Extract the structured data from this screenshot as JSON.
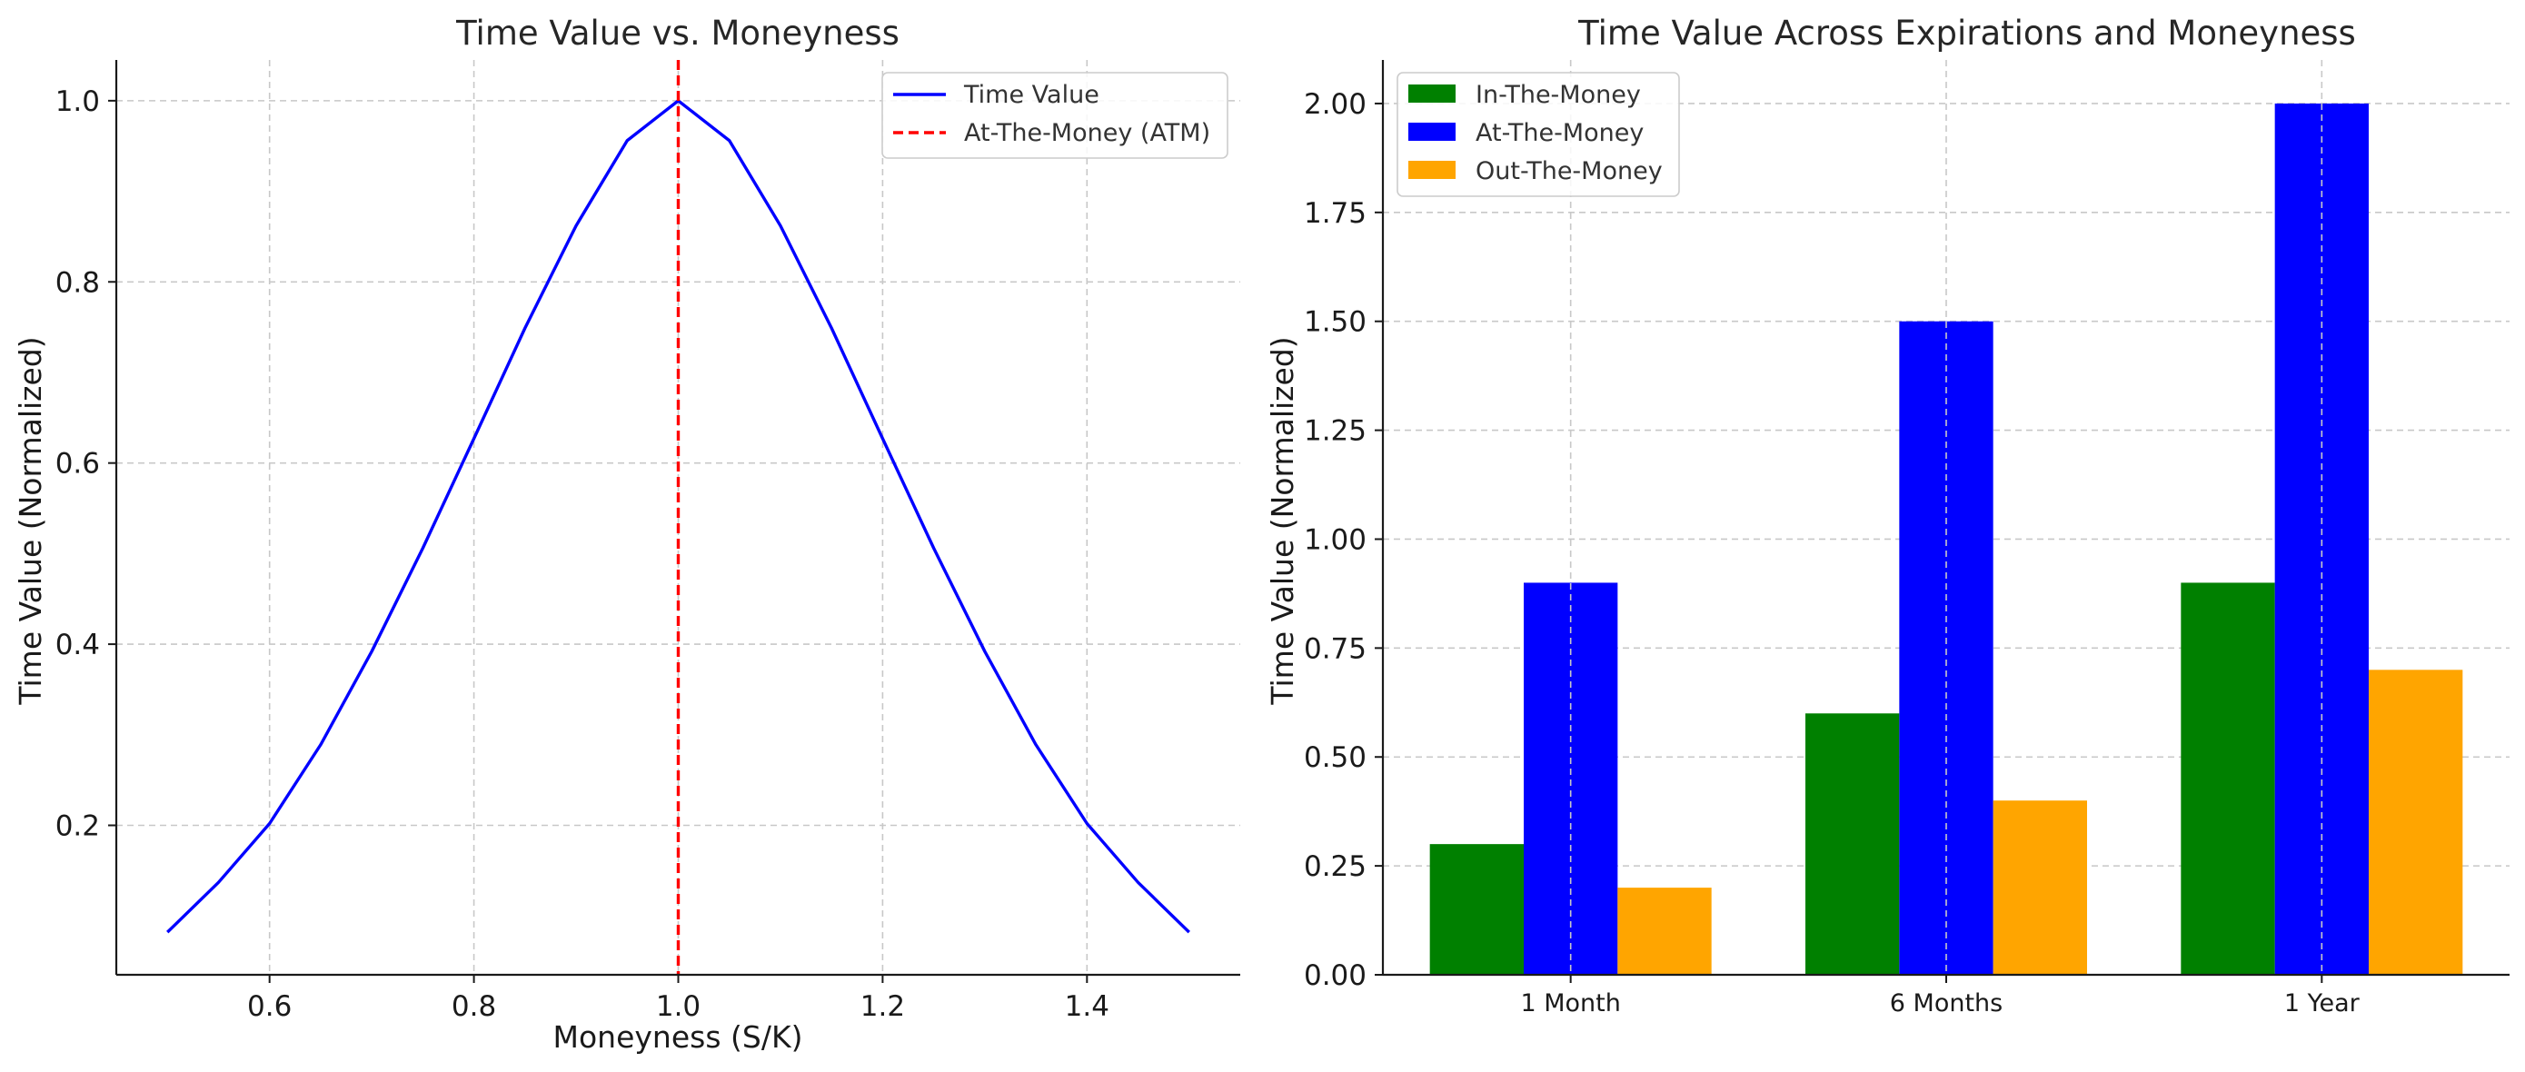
{
  "chart_data": [
    {
      "type": "line",
      "title": "Time Value vs. Moneyness",
      "xlabel": "Moneyness (S/K)",
      "ylabel": "Time Value (Normalized)",
      "xlim": [
        0.45,
        1.55
      ],
      "ylim": [
        0.035,
        1.045
      ],
      "xticks": [
        0.6,
        0.8,
        1.0,
        1.2,
        1.4
      ],
      "yticks": [
        0.2,
        0.4,
        0.6,
        0.8,
        1.0
      ],
      "grid": true,
      "legend_position": "top-right",
      "series": [
        {
          "name": "Time Value",
          "color": "#0000ff",
          "style": "solid",
          "x": [
            0.5,
            0.55,
            0.6,
            0.65,
            0.7,
            0.75,
            0.8,
            0.85,
            0.9,
            0.95,
            1.0,
            1.05,
            1.1,
            1.15,
            1.2,
            1.25,
            1.3,
            1.35,
            1.4,
            1.45,
            1.5
          ],
          "y": [
            0.082,
            0.137,
            0.202,
            0.289,
            0.392,
            0.506,
            0.627,
            0.749,
            0.862,
            0.956,
            1.0,
            0.956,
            0.862,
            0.749,
            0.627,
            0.506,
            0.392,
            0.289,
            0.202,
            0.137,
            0.082
          ]
        },
        {
          "name": "At-The-Money (ATM)",
          "color": "#ff0000",
          "style": "dashed",
          "vertical_line_x": 1.0
        }
      ]
    },
    {
      "type": "bar",
      "title": "Time Value Across Expirations and Moneyness",
      "xlabel": "",
      "ylabel": "Time Value (Normalized)",
      "categories": [
        "1 Month",
        "6 Months",
        "1 Year"
      ],
      "ylim": [
        0,
        2.1
      ],
      "yticks": [
        "0.00",
        "0.25",
        "0.50",
        "0.75",
        "1.00",
        "1.25",
        "1.50",
        "1.75",
        "2.00"
      ],
      "grid": true,
      "legend_position": "top-left",
      "series": [
        {
          "name": "In-The-Money",
          "color": "#008000",
          "values": [
            0.3,
            0.6,
            0.9
          ]
        },
        {
          "name": "At-The-Money",
          "color": "#0000ff",
          "values": [
            0.9,
            1.5,
            2.0
          ]
        },
        {
          "name": "Out-The-Money",
          "color": "#ffa500",
          "values": [
            0.2,
            0.4,
            0.7
          ]
        }
      ]
    }
  ]
}
